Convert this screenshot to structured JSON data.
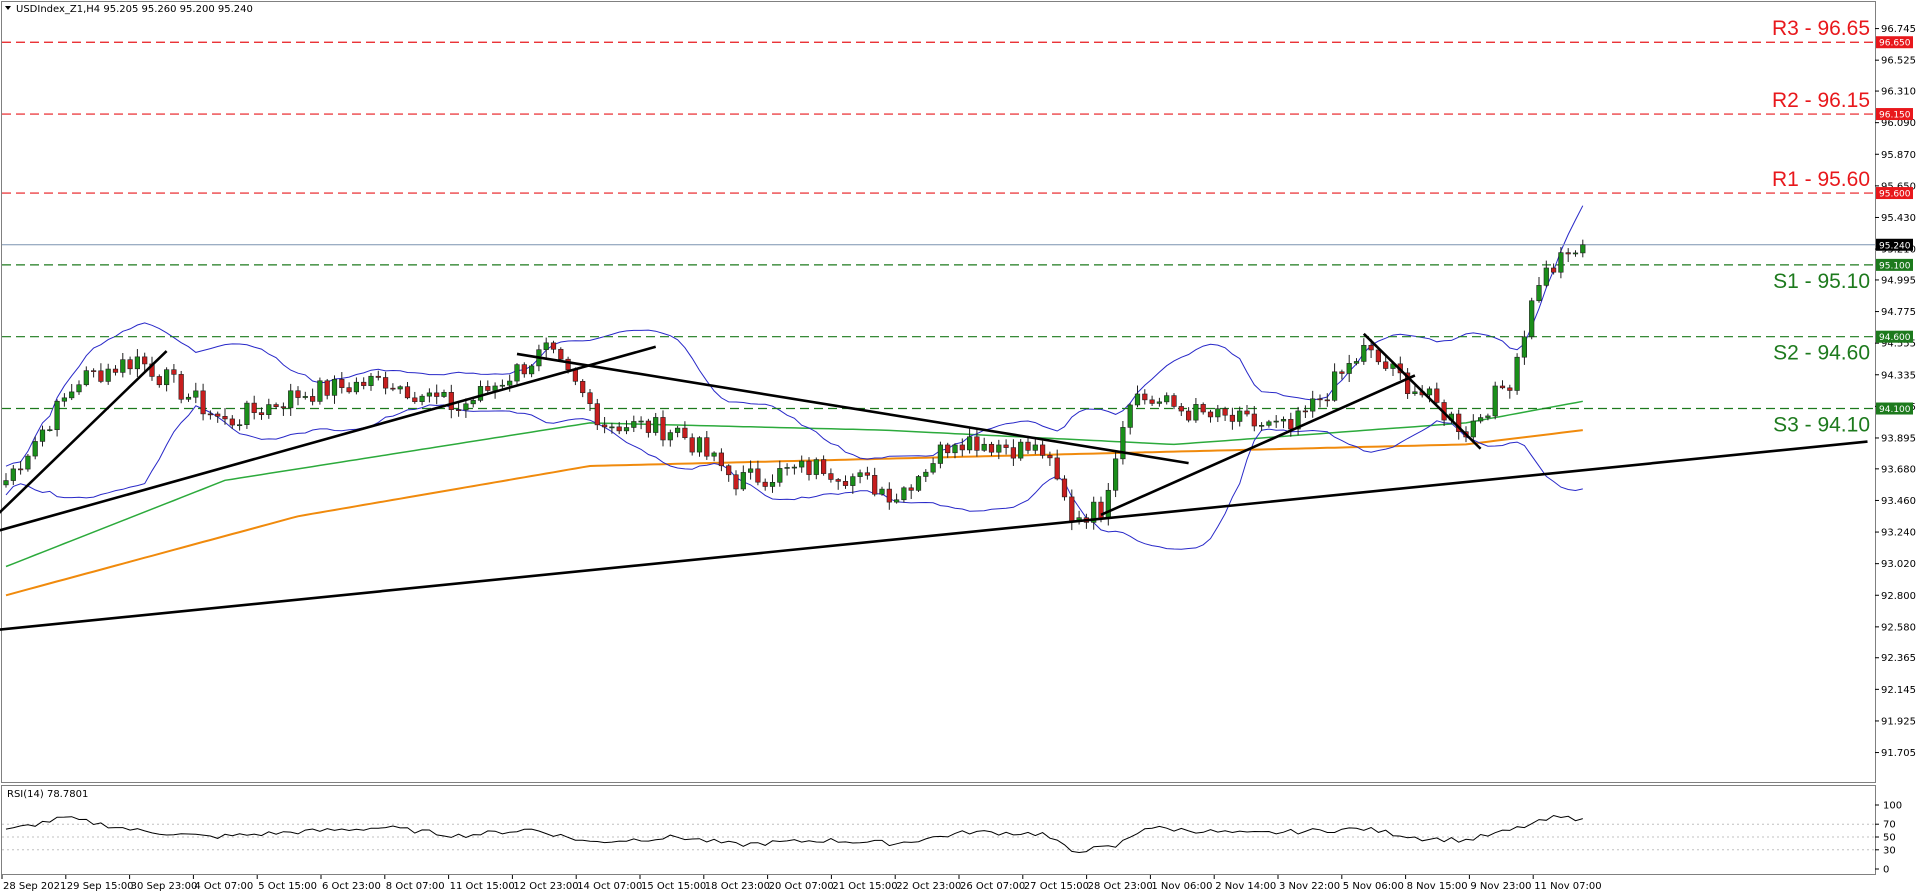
{
  "header": {
    "symbol_label": "USDIndex_Z1,H4  95.205 95.260 95.200 95.240",
    "rsi_label": "RSI(14) 78.7801"
  },
  "colors": {
    "resistance": "#e8181c",
    "support": "#1d7a1d",
    "bull": "#1a8f1a",
    "bear": "#c81e1e",
    "wick": "#202020",
    "bb": "#2828c8",
    "ma100": "#2caa3c",
    "ma200": "#f08a0c",
    "trend": "#000000",
    "price_line": "#7c93b0"
  },
  "chart_data": {
    "type": "candlestick",
    "symbol": "USDIndex_Z1",
    "timeframe": "H4",
    "ohlc_header": {
      "open": 95.205,
      "high": 95.26,
      "low": 95.2,
      "close": 95.24
    },
    "y_range": [
      91.5,
      96.93
    ],
    "y_ticks": [
      "96.745",
      "96.525",
      "96.310",
      "96.090",
      "95.870",
      "95.650",
      "95.430",
      "95.210",
      "94.995",
      "94.775",
      "94.555",
      "94.335",
      "94.115",
      "93.895",
      "93.680",
      "93.460",
      "93.240",
      "93.020",
      "92.800",
      "92.580",
      "92.365",
      "92.145",
      "91.925",
      "91.705"
    ],
    "x_labels": [
      "28 Sep 2021",
      "29 Sep 15:00",
      "30 Sep 23:00",
      "4 Oct 07:00",
      "5 Oct 15:00",
      "6 Oct 23:00",
      "8 Oct 07:00",
      "11 Oct 15:00",
      "12 Oct 23:00",
      "14 Oct 07:00",
      "15 Oct 15:00",
      "18 Oct 23:00",
      "20 Oct 07:00",
      "21 Oct 15:00",
      "22 Oct 23:00",
      "26 Oct 07:00",
      "27 Oct 15:00",
      "28 Oct 23:00",
      "1 Nov 06:00",
      "2 Nov 14:00",
      "3 Nov 22:00",
      "5 Nov 06:00",
      "8 Nov 15:00",
      "9 Nov 23:00",
      "11 Nov 07:00"
    ],
    "levels": [
      {
        "label": "R3 - 96.65",
        "value": 96.65,
        "box": "96.650",
        "kind": "resistance"
      },
      {
        "label": "R2 - 96.15",
        "value": 96.15,
        "box": "96.150",
        "kind": "resistance"
      },
      {
        "label": "R1 - 95.60",
        "value": 95.6,
        "box": "95.600",
        "kind": "resistance"
      },
      {
        "label": "S1 - 95.10",
        "value": 95.1,
        "box": "95.100",
        "kind": "support"
      },
      {
        "label": "S2 - 94.60",
        "value": 94.6,
        "box": "94.600",
        "kind": "support"
      },
      {
        "label": "S3 - 94.10",
        "value": 94.1,
        "box": "94.100",
        "kind": "support"
      }
    ],
    "current_price": {
      "value": 95.24,
      "box": "95.240"
    },
    "anchors": [
      {
        "i": 0,
        "p": 93.6
      },
      {
        "i": 10,
        "p": 94.3
      },
      {
        "i": 18,
        "p": 94.45
      },
      {
        "i": 30,
        "p": 94.0
      },
      {
        "i": 40,
        "p": 94.2
      },
      {
        "i": 52,
        "p": 94.3
      },
      {
        "i": 62,
        "p": 94.1
      },
      {
        "i": 74,
        "p": 94.5
      },
      {
        "i": 82,
        "p": 94.0
      },
      {
        "i": 92,
        "p": 93.95
      },
      {
        "i": 100,
        "p": 93.6
      },
      {
        "i": 112,
        "p": 93.7
      },
      {
        "i": 122,
        "p": 93.5
      },
      {
        "i": 130,
        "p": 93.9
      },
      {
        "i": 142,
        "p": 93.8
      },
      {
        "i": 146,
        "p": 93.35
      },
      {
        "i": 150,
        "p": 93.4
      },
      {
        "i": 154,
        "p": 94.2
      },
      {
        "i": 164,
        "p": 94.05
      },
      {
        "i": 176,
        "p": 93.95
      },
      {
        "i": 186,
        "p": 94.5
      },
      {
        "i": 194,
        "p": 94.2
      },
      {
        "i": 200,
        "p": 93.95
      },
      {
        "i": 206,
        "p": 94.3
      },
      {
        "i": 210,
        "p": 95.0
      },
      {
        "i": 216,
        "p": 95.24
      }
    ],
    "trendlines": [
      {
        "p1": [
          -1,
          93.37
        ],
        "p2": [
          22,
          94.5
        ]
      },
      {
        "p1": [
          -1,
          93.25
        ],
        "p2": [
          89,
          94.53
        ]
      },
      {
        "p1": [
          70,
          94.48
        ],
        "p2": [
          162,
          93.72
        ]
      },
      {
        "p1": [
          -1,
          92.56
        ],
        "p2": [
          255,
          93.87
        ]
      },
      {
        "p1": [
          150,
          93.36
        ],
        "p2": [
          193,
          94.33
        ]
      },
      {
        "p1": [
          186,
          94.62
        ],
        "p2": [
          202,
          93.82
        ]
      }
    ],
    "ma100": [
      [
        0,
        93.0
      ],
      [
        30,
        93.6
      ],
      [
        80,
        94.0
      ],
      [
        120,
        93.95
      ],
      [
        160,
        93.85
      ],
      [
        200,
        94.0
      ],
      [
        216,
        94.15
      ]
    ],
    "ma200": [
      [
        0,
        92.8
      ],
      [
        40,
        93.35
      ],
      [
        80,
        93.7
      ],
      [
        120,
        93.75
      ],
      [
        160,
        93.8
      ],
      [
        200,
        93.85
      ],
      [
        216,
        93.95
      ]
    ],
    "rsi": {
      "ticks": [
        100,
        70,
        50,
        30,
        0
      ],
      "range": [
        0,
        100
      ],
      "last": 78.7801,
      "anchors": [
        [
          0,
          60
        ],
        [
          8,
          80
        ],
        [
          18,
          60
        ],
        [
          28,
          50
        ],
        [
          40,
          58
        ],
        [
          52,
          65
        ],
        [
          62,
          52
        ],
        [
          72,
          62
        ],
        [
          80,
          42
        ],
        [
          92,
          50
        ],
        [
          100,
          38
        ],
        [
          112,
          45
        ],
        [
          122,
          40
        ],
        [
          132,
          58
        ],
        [
          142,
          55
        ],
        [
          146,
          28
        ],
        [
          152,
          35
        ],
        [
          156,
          65
        ],
        [
          170,
          55
        ],
        [
          186,
          63
        ],
        [
          194,
          48
        ],
        [
          200,
          45
        ],
        [
          206,
          60
        ],
        [
          212,
          80
        ],
        [
          216,
          79
        ]
      ]
    }
  }
}
